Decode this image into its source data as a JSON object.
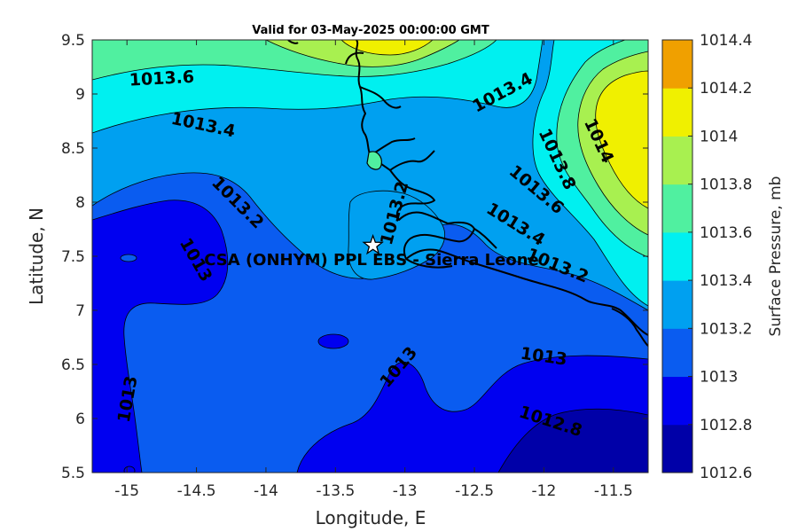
{
  "title": "Valid for 03-May-2025 00:00:00 GMT",
  "site_label": "CSA (ONHYM) PPL EBS  - Sierra Leone",
  "site": {
    "lon": -13.23,
    "lat": 7.6,
    "marker": "star-icon"
  },
  "colorbar": {
    "title": "Surface Pressure, mb",
    "levels": [
      1012.6,
      1012.8,
      1013,
      1013.2,
      1013.4,
      1013.6,
      1013.8,
      1014,
      1014.2,
      1014.4
    ],
    "tick_labels": [
      "1012.6",
      "1012.8",
      "1013",
      "1013.2",
      "1013.4",
      "1013.6",
      "1013.8",
      "1014",
      "1014.2",
      "1014.4"
    ],
    "colors": [
      "#0000a8",
      "#0000f0",
      "#0a5cf0",
      "#00a0f0",
      "#00f0f0",
      "#50f0a0",
      "#a8f050",
      "#f0f000",
      "#f0a000",
      "#f05000"
    ]
  },
  "chart_data": {
    "type": "contour-map",
    "title": "Valid for 03-May-2025 00:00:00 GMT",
    "xlabel": "Longitude, E",
    "ylabel": "Latitude, N",
    "xlim": [
      -15.25,
      -11.25
    ],
    "ylim": [
      5.5,
      9.5
    ],
    "xticks": [
      -15,
      -14.5,
      -14,
      -13.5,
      -13,
      -12.5,
      -12,
      -11.5
    ],
    "xtick_labels": [
      "-15",
      "-14.5",
      "-14",
      "-13.5",
      "-13",
      "-12.5",
      "-12",
      "-11.5"
    ],
    "yticks": [
      5.5,
      6,
      6.5,
      7,
      7.5,
      8,
      8.5,
      9,
      9.5
    ],
    "ytick_labels": [
      "5.5",
      "6",
      "6.5",
      "7",
      "7.5",
      "8",
      "8.5",
      "9",
      "9.5"
    ],
    "variable": "Surface Pressure",
    "units": "mb",
    "contour_labels": [
      {
        "text": "1013.6",
        "lon": -14.75,
        "lat": 9.15,
        "angle": -3
      },
      {
        "text": "1013.4",
        "lon": -14.45,
        "lat": 8.72,
        "angle": 12
      },
      {
        "text": "1013.4",
        "lon": -12.3,
        "lat": 9.02,
        "angle": -28
      },
      {
        "text": "1013.2",
        "lon": -14.2,
        "lat": 8.0,
        "angle": 45
      },
      {
        "text": "1013",
        "lon": -14.5,
        "lat": 7.47,
        "angle": 60
      },
      {
        "text": "1013.2",
        "lon": -13.08,
        "lat": 7.9,
        "angle": -75
      },
      {
        "text": "1014",
        "lon": -11.6,
        "lat": 8.57,
        "angle": 65
      },
      {
        "text": "1013.8",
        "lon": -11.9,
        "lat": 8.4,
        "angle": 65
      },
      {
        "text": "1013.6",
        "lon": -12.05,
        "lat": 8.12,
        "angle": 40
      },
      {
        "text": "1013.4",
        "lon": -12.2,
        "lat": 7.8,
        "angle": 32
      },
      {
        "text": "1013.2",
        "lon": -11.9,
        "lat": 7.42,
        "angle": 22
      },
      {
        "text": "1013",
        "lon": -12.0,
        "lat": 6.58,
        "angle": 8
      },
      {
        "text": "1013",
        "lon": -13.05,
        "lat": 6.48,
        "angle": -50
      },
      {
        "text": "1013",
        "lon": -15.0,
        "lat": 6.18,
        "angle": -80
      },
      {
        "text": "1012.8",
        "lon": -11.95,
        "lat": 5.98,
        "angle": 18
      }
    ]
  }
}
